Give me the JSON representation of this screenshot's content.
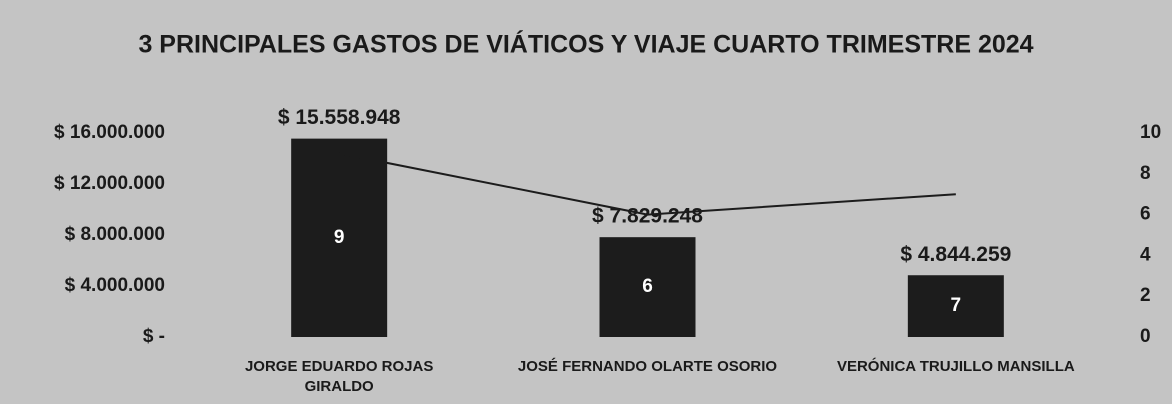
{
  "chart_data": {
    "type": "bar",
    "title": "3 PRINCIPALES GASTOS DE VIÁTICOS Y VIAJE CUARTO TRIMESTRE 2024",
    "categories": [
      "JORGE EDUARDO ROJAS GIRALDO",
      "JOSÉ FERNANDO OLARTE OSORIO",
      "VERÓNICA TRUJILLO MANSILLA"
    ],
    "series": [
      {
        "type": "bar",
        "color": "#1c1c1c",
        "values": [
          15558948,
          7829248,
          4844259
        ],
        "value_labels": [
          "$ 15.558.948",
          "$ 7.829.248",
          "$ 4.844.259"
        ]
      },
      {
        "type": "line",
        "axis": "y2",
        "color": "#1c1c1c",
        "values": [
          9,
          6,
          7
        ]
      }
    ],
    "ylim": [
      0,
      16000000
    ],
    "yticks": [
      {
        "value": 0,
        "label": "$ -"
      },
      {
        "value": 4000000,
        "label": "$ 4.000.000"
      },
      {
        "value": 8000000,
        "label": "$ 8.000.000"
      },
      {
        "value": 12000000,
        "label": "$ 12.000.000"
      },
      {
        "value": 16000000,
        "label": "$ 16.000.000"
      }
    ],
    "y2lim": [
      0,
      10
    ],
    "y2ticks": [
      0,
      2,
      4,
      6,
      8,
      10
    ],
    "grid": false
  }
}
